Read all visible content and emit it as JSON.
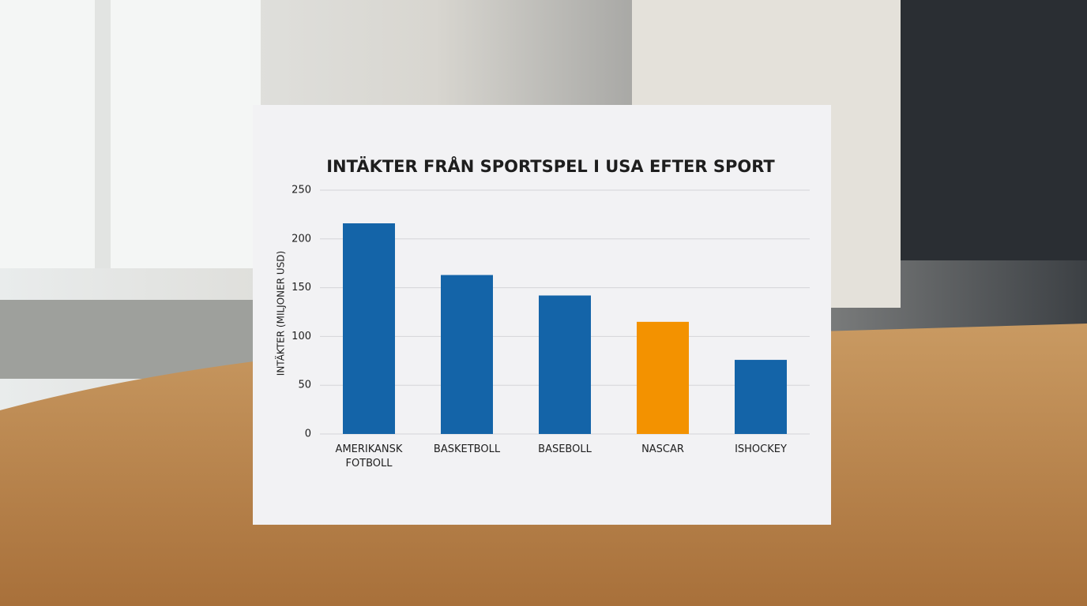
{
  "chart_data": {
    "type": "bar",
    "title": "INTÄKTER FRÅN SPORTSPEL I USA EFTER SPORT",
    "y_label": "INTÄKTER (MILJONER USD)",
    "categories": [
      "AMERIKANSK FOTBOLL",
      "BASKETBOLL",
      "BASEBOLL",
      "NASCAR",
      "ISHOCKEY"
    ],
    "values": [
      216,
      163,
      142,
      115,
      76
    ],
    "colors": [
      "#1464a8",
      "#1464a8",
      "#1464a8",
      "#f39200",
      "#1464a8"
    ],
    "ylim": [
      0,
      250
    ],
    "yticks": [
      0,
      50,
      100,
      150,
      200,
      250
    ],
    "grid": true
  }
}
